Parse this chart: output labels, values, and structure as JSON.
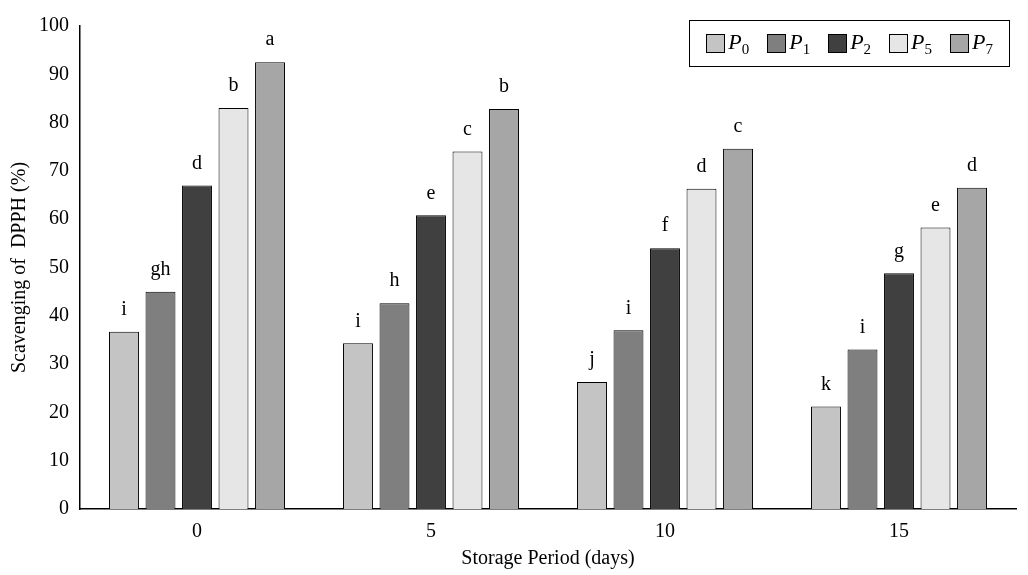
{
  "chart_data": {
    "type": "bar",
    "xlabel": "Storage Period (days)",
    "ylabel": "Scavenging of  DPPH (%)",
    "categories": [
      "0",
      "5",
      "10",
      "15"
    ],
    "series": [
      {
        "name": "P$_{0}$",
        "color": "#c4c4c4",
        "values": [
          36.7,
          34.3,
          26.3,
          21.2
        ],
        "value_labels": [
          "i",
          "i",
          "j",
          "k"
        ]
      },
      {
        "name": "P$_{1}$",
        "color": "#7f7f7f",
        "values": [
          45,
          42.6,
          37,
          33
        ],
        "value_labels": [
          "gh",
          "h",
          "i",
          "i"
        ]
      },
      {
        "name": "P$_{2}$",
        "color": "#404040",
        "values": [
          67,
          60.8,
          54,
          48.8
        ],
        "value_labels": [
          "d",
          "e",
          "f",
          "g"
        ]
      },
      {
        "name": "P$_{5}$",
        "color": "#e6e6e6",
        "values": [
          83,
          74,
          66.3,
          58.3
        ],
        "value_labels": [
          "b",
          "c",
          "d",
          "e"
        ]
      },
      {
        "name": "P$_{7}$",
        "color": "#a6a6a6",
        "values": [
          92.5,
          82.8,
          74.6,
          66.5
        ],
        "value_labels": [
          "a",
          "b",
          "c",
          "d"
        ]
      }
    ],
    "ylim": [
      0,
      100
    ],
    "yticks": [
      0,
      10,
      20,
      30,
      40,
      50,
      60,
      70,
      80,
      90,
      100
    ],
    "grid": false,
    "legend": "top right"
  }
}
